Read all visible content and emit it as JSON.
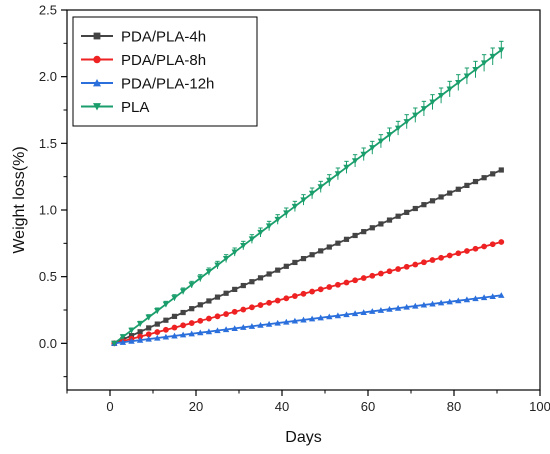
{
  "chart_data": {
    "type": "line",
    "xlabel": "Days",
    "ylabel": "Weight loss(%)",
    "xlim": [
      -10,
      100
    ],
    "ylim": [
      -0.35,
      2.5
    ],
    "xticks": [
      0,
      20,
      40,
      60,
      80,
      100
    ],
    "yticks": [
      0.0,
      0.5,
      1.0,
      1.5,
      2.0,
      2.5
    ],
    "xtick_labels": [
      "0",
      "20",
      "40",
      "60",
      "80",
      "100"
    ],
    "ytick_labels": [
      "0.0",
      "0.5",
      "1.0",
      "1.5",
      "2.0",
      "2.5"
    ],
    "grid": false,
    "legend_position": "top-left",
    "x": [
      1,
      91
    ],
    "series": [
      {
        "name": "PDA/PLA-4h",
        "values": [
          0.0,
          1.3
        ],
        "color": "#444444",
        "marker": "square",
        "error_bars": false
      },
      {
        "name": "PDA/PLA-8h",
        "values": [
          0.0,
          0.76
        ],
        "color": "#ee2222",
        "marker": "circle",
        "error_bars": false
      },
      {
        "name": "PDA/PLA-12h",
        "values": [
          0.0,
          0.36
        ],
        "color": "#2a6fdb",
        "marker": "triangle-up",
        "error_bars": false
      },
      {
        "name": "PLA",
        "values": [
          0.0,
          2.2
        ],
        "color": "#1a9e6b",
        "marker": "triangle-down",
        "error_bars": true,
        "error": 0.05
      }
    ],
    "sampling_interval_days": 2
  }
}
